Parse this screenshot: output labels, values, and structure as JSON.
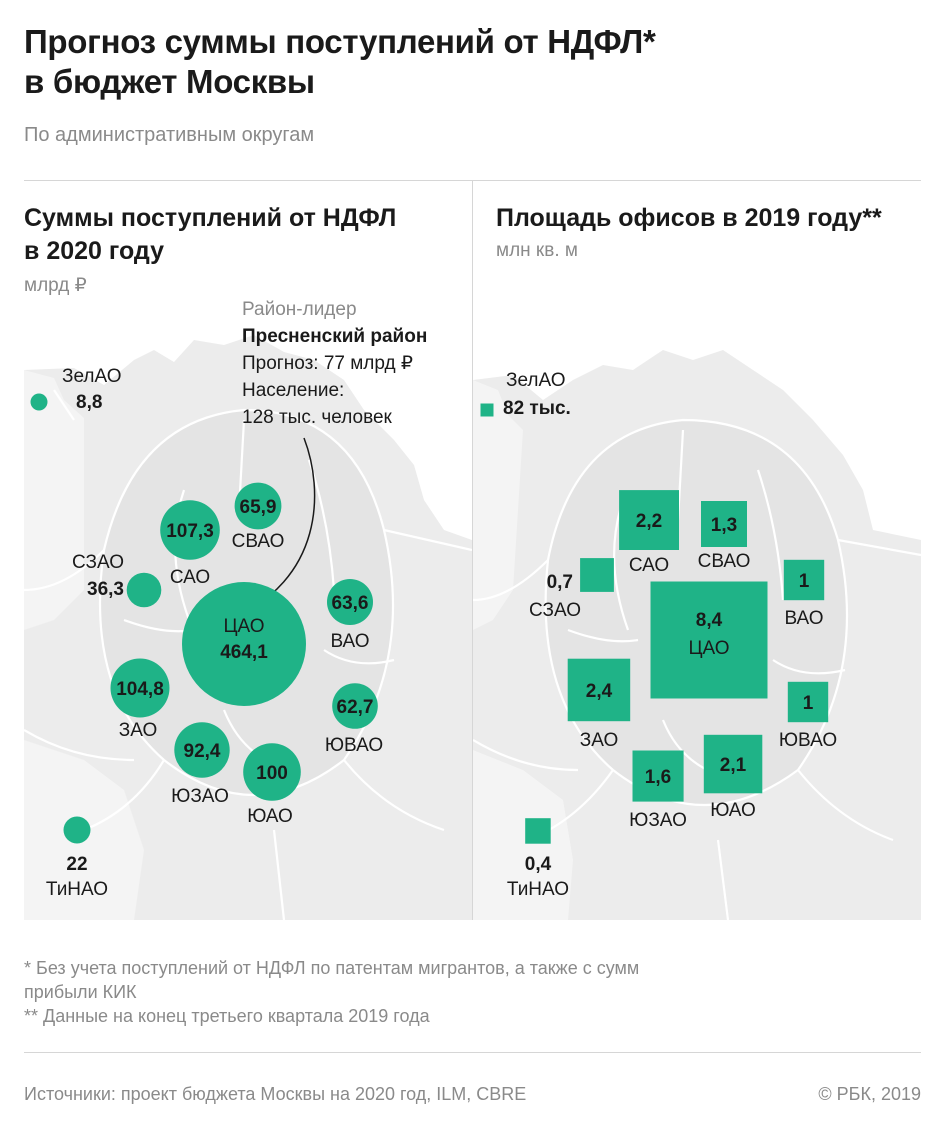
{
  "header": {
    "title_line1": "Прогноз суммы поступлений от НДФЛ*",
    "title_line2": "в бюджет Москвы",
    "subtitle": "По административным округам"
  },
  "left_panel": {
    "title_line1": "Суммы поступлений от НДФЛ",
    "title_line2": "в 2020 году",
    "unit": "млрд ₽",
    "callout": {
      "label": "Район-лидер",
      "name": "Пресненский район",
      "forecast": "Прогноз: 77 млрд ₽",
      "population_line1": "Население:",
      "population_line2": "128 тыс. человек"
    }
  },
  "right_panel": {
    "title": "Площадь офисов в 2019 году**",
    "unit": "млн кв. м"
  },
  "chart_data": [
    {
      "type": "proportional-symbol-map",
      "symbol": "circle",
      "unit": "млрд ₽",
      "districts": [
        {
          "district": "ЗелАО",
          "value": "8,8",
          "num": 8.8
        },
        {
          "district": "САО",
          "value": "107,3",
          "num": 107.3
        },
        {
          "district": "СВАО",
          "value": "65,9",
          "num": 65.9
        },
        {
          "district": "СЗАО",
          "value": "36,3",
          "num": 36.3
        },
        {
          "district": "ЦАО",
          "value": "464,1",
          "num": 464.1
        },
        {
          "district": "ВАО",
          "value": "63,6",
          "num": 63.6
        },
        {
          "district": "ЗАО",
          "value": "104,8",
          "num": 104.8
        },
        {
          "district": "ЮВАО",
          "value": "62,7",
          "num": 62.7
        },
        {
          "district": "ЮЗАО",
          "value": "92,4",
          "num": 92.4
        },
        {
          "district": "ЮАО",
          "value": "100",
          "num": 100
        },
        {
          "district": "ТиНАО",
          "value": "22",
          "num": 22
        }
      ]
    },
    {
      "type": "proportional-symbol-map",
      "symbol": "square",
      "unit": "млн кв. м",
      "districts": [
        {
          "district": "ЗелАО",
          "value": "82 тыс.",
          "num": 0.082
        },
        {
          "district": "САО",
          "value": "2,2",
          "num": 2.2
        },
        {
          "district": "СВАО",
          "value": "1,3",
          "num": 1.3
        },
        {
          "district": "СЗАО",
          "value": "0,7",
          "num": 0.7
        },
        {
          "district": "ВАО",
          "value": "1",
          "num": 1
        },
        {
          "district": "ЦАО",
          "value": "8,4",
          "num": 8.4
        },
        {
          "district": "ЗАО",
          "value": "2,4",
          "num": 2.4
        },
        {
          "district": "ЮВАО",
          "value": "1",
          "num": 1
        },
        {
          "district": "ЮЗАО",
          "value": "1,6",
          "num": 1.6
        },
        {
          "district": "ЮАО",
          "value": "2,1",
          "num": 2.1
        },
        {
          "district": "ТиНАО",
          "value": "0,4",
          "num": 0.4
        }
      ]
    }
  ],
  "notes": {
    "note1_line1": "* Без учета поступлений от НДФЛ по патентам мигрантов, а также с сумм",
    "note1_line2": "прибыли КИК",
    "note2": "** Данные на конец третьего квартала 2019 года"
  },
  "footer": {
    "sources": "Источники: проект бюджета Москвы на 2020 год, ILM, CBRE",
    "copyright": "© РБК, 2019"
  },
  "colors": {
    "accent": "#1fb387",
    "map_fill": "#ececec",
    "map_lines": "#ffffff",
    "text": "#1a1a1a",
    "muted": "#8a8a8a"
  }
}
